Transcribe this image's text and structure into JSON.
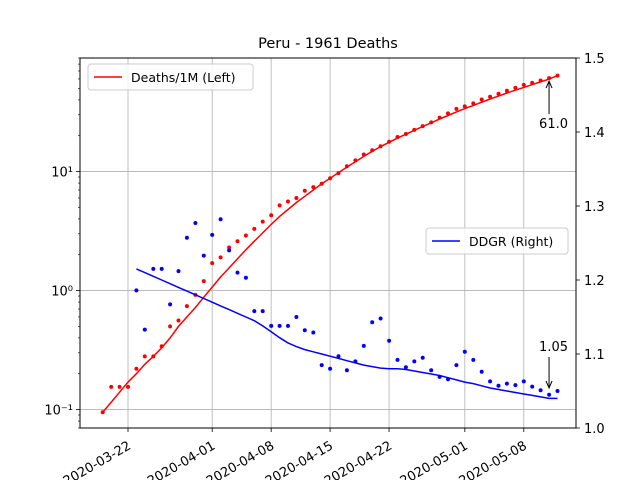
{
  "chart_data": {
    "type": "line",
    "title": "Peru - 1961 Deaths",
    "x_ticks": [
      "2020-03-22",
      "2020-04-01",
      "2020-04-08",
      "2020-04-15",
      "2020-04-22",
      "2020-05-01",
      "2020-05-08"
    ],
    "left_axis": {
      "scale": "log",
      "ylim": [
        0.07,
        90
      ],
      "tick_labels": [
        "10⁻¹",
        "10⁰",
        "10¹"
      ],
      "tick_values": [
        0.1,
        1,
        10
      ]
    },
    "right_axis": {
      "scale": "linear",
      "ylim": [
        1.0,
        1.5
      ],
      "tick_labels": [
        "1.0",
        "1.1",
        "1.2",
        "1.3",
        "1.4",
        "1.5"
      ],
      "tick_values": [
        1.0,
        1.1,
        1.2,
        1.3,
        1.4,
        1.5
      ]
    },
    "grid": true,
    "series": [
      {
        "name": "Deaths/1M (Left)",
        "axis": "left",
        "color": "#ff0000",
        "x": [
          "2020-03-19",
          "2020-03-20",
          "2020-03-21",
          "2020-03-22",
          "2020-03-23",
          "2020-03-24",
          "2020-03-25",
          "2020-03-26",
          "2020-03-27",
          "2020-03-28",
          "2020-03-29",
          "2020-03-30",
          "2020-03-31",
          "2020-04-01",
          "2020-04-02",
          "2020-04-03",
          "2020-04-04",
          "2020-04-05",
          "2020-04-06",
          "2020-04-07",
          "2020-04-08",
          "2020-04-09",
          "2020-04-10",
          "2020-04-11",
          "2020-04-12",
          "2020-04-13",
          "2020-04-14",
          "2020-04-15",
          "2020-04-16",
          "2020-04-17",
          "2020-04-18",
          "2020-04-19",
          "2020-04-20",
          "2020-04-21",
          "2020-04-22",
          "2020-04-23",
          "2020-04-24",
          "2020-04-25",
          "2020-04-26",
          "2020-04-27",
          "2020-04-28",
          "2020-04-29",
          "2020-04-30",
          "2020-05-01",
          "2020-05-02",
          "2020-05-03",
          "2020-05-04",
          "2020-05-05",
          "2020-05-06",
          "2020-05-07",
          "2020-05-08",
          "2020-05-09",
          "2020-05-10",
          "2020-05-11",
          "2020-05-12"
        ],
        "line": [
          0.095,
          0.115,
          0.14,
          0.17,
          0.2,
          0.24,
          0.28,
          0.33,
          0.4,
          0.5,
          0.6,
          0.72,
          0.88,
          1.07,
          1.3,
          1.55,
          1.85,
          2.2,
          2.6,
          3.05,
          3.6,
          4.2,
          4.8,
          5.5,
          6.2,
          7.0,
          7.9,
          8.8,
          9.8,
          10.9,
          12.1,
          13.4,
          14.8,
          16.2,
          17.6,
          19.1,
          20.6,
          22.2,
          23.9,
          25.7,
          27.6,
          29.6,
          31.7,
          33.8,
          36.0,
          38.3,
          40.7,
          43.1,
          45.7,
          48.3,
          51.0,
          53.8,
          56.7,
          59.8,
          64.0
        ],
        "markers": [
          0.095,
          0.155,
          0.155,
          0.155,
          0.22,
          0.28,
          0.28,
          0.34,
          0.5,
          0.56,
          0.74,
          0.92,
          1.2,
          1.7,
          1.9,
          2.3,
          2.6,
          2.9,
          3.3,
          3.8,
          4.3,
          5.2,
          5.6,
          6.0,
          6.9,
          7.4,
          7.9,
          8.8,
          9.7,
          11.1,
          12.4,
          13.9,
          15.1,
          16.3,
          17.8,
          19.5,
          20.7,
          22.4,
          24.1,
          25.9,
          28.4,
          30.8,
          33.6,
          35.3,
          37.4,
          40.3,
          42.5,
          45.0,
          47.8,
          50.5,
          53.5,
          55.6,
          58.2,
          61.0,
          64.0
        ]
      },
      {
        "name": "DDGR (Right)",
        "axis": "right",
        "color": "#0000ff",
        "x": [
          "2020-03-19",
          "2020-03-20",
          "2020-03-21",
          "2020-03-22",
          "2020-03-23",
          "2020-03-24",
          "2020-03-25",
          "2020-03-26",
          "2020-03-27",
          "2020-03-28",
          "2020-03-29",
          "2020-03-30",
          "2020-03-31",
          "2020-04-01",
          "2020-04-02",
          "2020-04-03",
          "2020-04-04",
          "2020-04-05",
          "2020-04-06",
          "2020-04-07",
          "2020-04-08",
          "2020-04-09",
          "2020-04-10",
          "2020-04-11",
          "2020-04-12",
          "2020-04-13",
          "2020-04-14",
          "2020-04-15",
          "2020-04-16",
          "2020-04-17",
          "2020-04-18",
          "2020-04-19",
          "2020-04-20",
          "2020-04-21",
          "2020-04-22",
          "2020-04-23",
          "2020-04-24",
          "2020-04-25",
          "2020-04-26",
          "2020-04-27",
          "2020-04-28",
          "2020-04-29",
          "2020-04-30",
          "2020-05-01",
          "2020-05-02",
          "2020-05-03",
          "2020-05-04",
          "2020-05-05",
          "2020-05-06",
          "2020-05-07",
          "2020-05-08",
          "2020-05-09",
          "2020-05-10",
          "2020-05-11",
          "2020-05-12"
        ],
        "line": [
          null,
          null,
          null,
          null,
          1.215,
          1.21,
          1.205,
          1.2,
          1.195,
          1.19,
          1.185,
          1.18,
          1.175,
          1.17,
          1.165,
          1.16,
          1.155,
          1.15,
          1.145,
          1.138,
          1.13,
          1.122,
          1.115,
          1.11,
          1.106,
          1.103,
          1.1,
          1.097,
          1.094,
          1.091,
          1.088,
          1.085,
          1.083,
          1.081,
          1.08,
          1.08,
          1.079,
          1.077,
          1.075,
          1.073,
          1.071,
          1.068,
          1.065,
          1.062,
          1.06,
          1.057,
          1.054,
          1.052,
          1.05,
          1.048,
          1.046,
          1.044,
          1.042,
          1.04,
          1.04
        ],
        "markers": [
          null,
          null,
          null,
          null,
          1.186,
          1.133,
          1.215,
          1.215,
          1.167,
          1.212,
          1.257,
          1.277,
          1.233,
          1.261,
          1.282,
          1.24,
          1.21,
          1.203,
          1.158,
          1.158,
          1.138,
          1.138,
          1.138,
          1.15,
          1.132,
          1.129,
          1.085,
          1.08,
          1.097,
          1.078,
          1.09,
          1.111,
          1.143,
          1.148,
          1.118,
          1.092,
          1.082,
          1.09,
          1.095,
          1.078,
          1.069,
          1.066,
          1.085,
          1.103,
          1.092,
          1.076,
          1.063,
          1.057,
          1.06,
          1.058,
          1.063,
          1.056,
          1.051,
          1.045,
          1.05
        ]
      }
    ],
    "legends": [
      {
        "label": "Deaths/1M (Left)",
        "position": "upper-left"
      },
      {
        "label": "DDGR (Right)",
        "position": "center-right"
      }
    ],
    "annotations": [
      {
        "text": "61.0",
        "axis": "left",
        "x": "2020-05-11",
        "y": 61.0
      },
      {
        "text": "1.05",
        "axis": "right",
        "x": "2020-05-11",
        "y": 1.05
      }
    ]
  }
}
